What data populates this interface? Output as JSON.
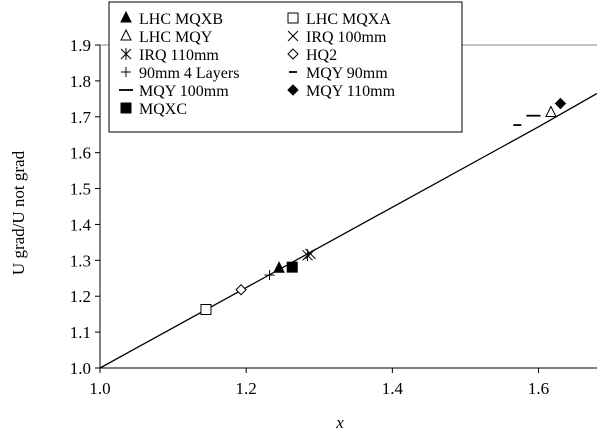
{
  "chart_data": {
    "type": "scatter",
    "xlabel": "x",
    "ylabel": "U grad/U not grad",
    "xlim": [
      1.0,
      1.68
    ],
    "ylim": [
      1.0,
      1.9
    ],
    "x_ticks": [
      "1.0",
      "1.2",
      "1.4",
      "1.6"
    ],
    "y_ticks": [
      "1.0",
      "1.1",
      "1.2",
      "1.3",
      "1.4",
      "1.5",
      "1.6",
      "1.7",
      "1.8",
      "1.9"
    ],
    "grid": false,
    "legend_position": "top-left",
    "trend_line": [
      [
        1.0,
        1.0
      ],
      [
        1.6,
        1.672
      ],
      [
        1.68,
        1.765
      ]
    ],
    "series": [
      {
        "name": "LHC MQXB",
        "marker": "triangle-filled",
        "points": [
          [
            1.245,
            1.278
          ]
        ]
      },
      {
        "name": "LHC MQXA",
        "marker": "square-open",
        "points": [
          [
            1.145,
            1.163
          ]
        ]
      },
      {
        "name": "LHC MQY",
        "marker": "triangle-open",
        "points": [
          [
            1.617,
            1.712
          ]
        ]
      },
      {
        "name": "IRQ 100mm",
        "marker": "x",
        "points": [
          [
            1.288,
            1.318
          ]
        ]
      },
      {
        "name": "IRQ 110mm",
        "marker": "asterisk",
        "points": [
          [
            1.284,
            1.314
          ]
        ]
      },
      {
        "name": "HQ2",
        "marker": "diamond-open",
        "points": [
          [
            1.193,
            1.218
          ]
        ]
      },
      {
        "name": "90mm 4 Layers",
        "marker": "plus",
        "points": [
          [
            1.232,
            1.259
          ]
        ]
      },
      {
        "name": "MQY 90mm",
        "marker": "short-dash",
        "points": [
          [
            1.571,
            1.677
          ]
        ]
      },
      {
        "name": "MQY 100mm",
        "marker": "long-dash",
        "points": [
          [
            1.593,
            1.703
          ]
        ]
      },
      {
        "name": "MQY 110mm",
        "marker": "diamond-filled",
        "points": [
          [
            1.63,
            1.737
          ]
        ]
      },
      {
        "name": "MQXC",
        "marker": "square-filled",
        "points": [
          [
            1.263,
            1.281
          ]
        ]
      }
    ]
  }
}
